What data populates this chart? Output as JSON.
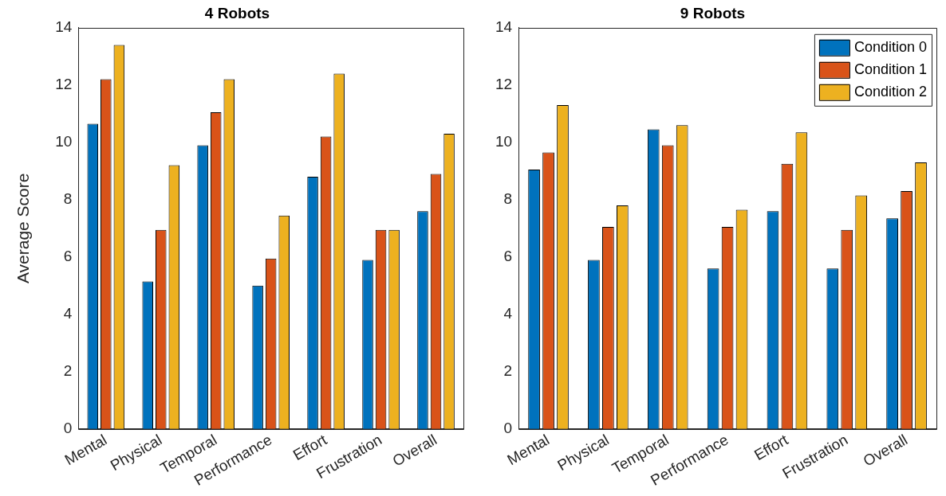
{
  "chart_data": [
    {
      "type": "bar",
      "title": "4 Robots",
      "ylabel": "Average Score",
      "categories": [
        "Mental",
        "Physical",
        "Temporal",
        "Performance",
        "Effort",
        "Frustration",
        "Overall"
      ],
      "ylim": [
        0,
        14
      ],
      "yticks": [
        0,
        2,
        4,
        6,
        8,
        10,
        12,
        14
      ],
      "grid": false,
      "legend": false,
      "series": [
        {
          "color": "#0072bd",
          "values": [
            10.65,
            5.15,
            9.9,
            5.0,
            8.8,
            5.9,
            7.6
          ]
        },
        {
          "color": "#d95319",
          "values": [
            12.2,
            6.95,
            11.05,
            5.95,
            10.2,
            6.95,
            8.9
          ]
        },
        {
          "color": "#edb120",
          "values": [
            13.4,
            9.2,
            12.2,
            7.45,
            12.4,
            6.95,
            10.3
          ]
        }
      ]
    },
    {
      "type": "bar",
      "title": "9 Robots",
      "categories": [
        "Mental",
        "Physical",
        "Temporal",
        "Performance",
        "Effort",
        "Frustration",
        "Overall"
      ],
      "ylim": [
        0,
        14
      ],
      "yticks": [
        0,
        2,
        4,
        6,
        8,
        10,
        12,
        14
      ],
      "grid": false,
      "legend": "top right",
      "series": [
        {
          "name": "Condition 0",
          "color": "#0072bd",
          "values": [
            9.05,
            5.9,
            10.45,
            5.6,
            7.6,
            5.6,
            7.35
          ]
        },
        {
          "name": "Condition 1",
          "color": "#d95319",
          "values": [
            9.65,
            7.05,
            9.9,
            7.05,
            9.25,
            6.95,
            8.3
          ]
        },
        {
          "name": "Condition 2",
          "color": "#edb120",
          "values": [
            11.3,
            7.8,
            10.6,
            7.65,
            10.35,
            8.15,
            9.3
          ]
        }
      ]
    }
  ]
}
